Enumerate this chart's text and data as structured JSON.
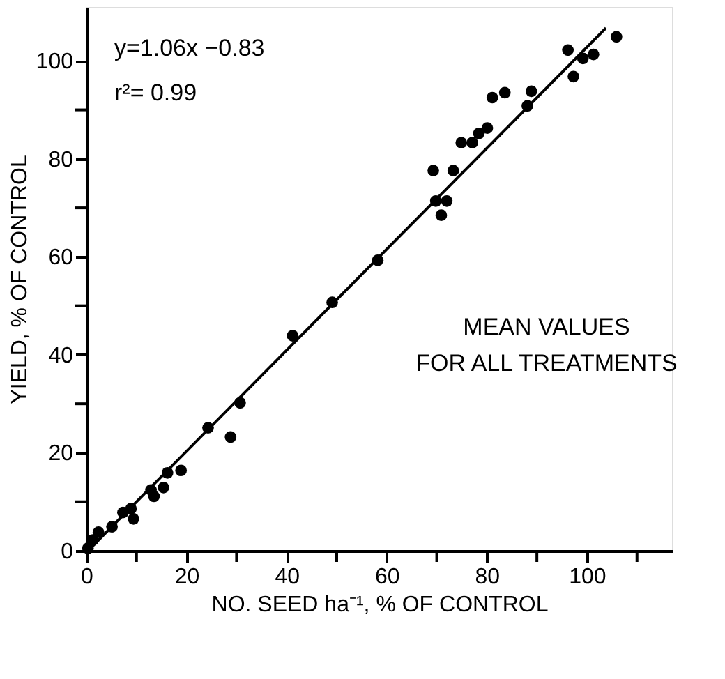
{
  "chart_data": {
    "type": "scatter",
    "xlabel": "NO. SEED ha⁻¹, % OF CONTROL",
    "ylabel": "YIELD, % OF CONTROL",
    "annotations": [
      "y=1.06x −0.83",
      "r²= 0.99",
      "MEAN VALUES\nFOR ALL TREATMENTS"
    ],
    "series": [
      {
        "color": "#000000",
        "x": [
          105.9,
          96.2,
          97.3,
          99.2,
          101.3,
          88.9,
          88.1,
          81.1,
          83.6,
          80.1,
          78.4,
          77.1,
          74.9,
          73.3,
          69.3,
          69.8,
          72.0,
          70.9,
          58.2,
          49.1,
          41.2,
          30.7,
          24.3,
          28.8,
          18.9,
          16.2,
          15.4,
          13.5,
          12.9,
          8.9,
          9.4,
          7.3,
          5.1,
          2.4,
          1.3,
          0.3
        ],
        "values": [
          104.9,
          102.2,
          96.8,
          100.5,
          101.3,
          93.8,
          90.8,
          92.5,
          93.5,
          86.3,
          85.2,
          83.3,
          83.3,
          77.6,
          77.6,
          71.4,
          71.4,
          68.5,
          59.3,
          50.7,
          43.9,
          30.2,
          25.1,
          23.2,
          16.4,
          15.9,
          12.9,
          11.1,
          12.4,
          8.6,
          6.5,
          7.8,
          4.9,
          3.8,
          2.2,
          0.5
        ]
      },
      {
        "type": "line",
        "color": "#000000",
        "marker": "none",
        "x": [
          0.3,
          103.8
        ],
        "values": [
          0,
          106.7
        ]
      }
    ],
    "marker": "circle",
    "xlim": [
      0,
      117
    ],
    "ylim": [
      0,
      111
    ],
    "xticks": [
      0,
      {
        "value": 10,
        "label": null
      },
      20,
      {
        "value": 30,
        "label": null
      },
      40,
      {
        "value": 50,
        "label": null
      },
      60,
      {
        "value": 70,
        "label": null
      },
      80,
      {
        "value": 90,
        "label": null
      },
      100,
      {
        "value": 110,
        "label": null
      }
    ],
    "yticks": [
      0,
      {
        "value": 10,
        "label": null
      },
      20,
      {
        "value": 30,
        "label": null
      },
      40,
      {
        "value": 50,
        "label": null
      },
      60,
      {
        "value": 70,
        "label": null
      },
      80,
      {
        "value": 90,
        "label": null
      },
      100
    ],
    "grid": false
  }
}
